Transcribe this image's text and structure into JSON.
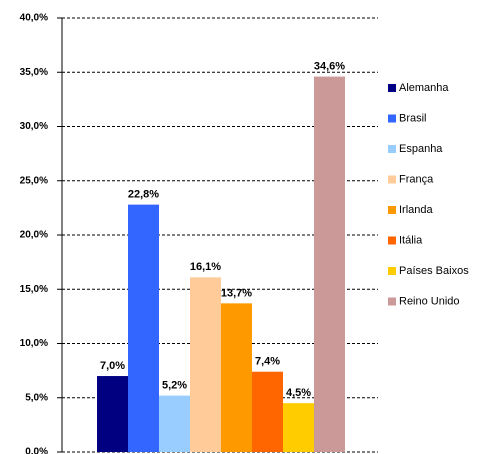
{
  "chart_data": {
    "type": "bar",
    "series": [
      {
        "name": "Alemanha",
        "color": "#000080",
        "values": [
          7.0
        ],
        "value_labels": [
          "7,0%"
        ]
      },
      {
        "name": "Brasil",
        "color": "#3366ff",
        "values": [
          22.8
        ],
        "value_labels": [
          "22,8%"
        ]
      },
      {
        "name": "Espanha",
        "color": "#99ccff",
        "values": [
          5.2
        ],
        "value_labels": [
          "5,2%"
        ]
      },
      {
        "name": "França",
        "color": "#ffcc99",
        "values": [
          16.1
        ],
        "value_labels": [
          "16,1%"
        ]
      },
      {
        "name": "Irlanda",
        "color": "#ff9900",
        "values": [
          13.7
        ],
        "value_labels": [
          "13,7%"
        ]
      },
      {
        "name": "Itália",
        "color": "#ff6600",
        "values": [
          7.4
        ],
        "value_labels": [
          "7,4%"
        ]
      },
      {
        "name": "Países Baixos",
        "color": "#ffcc00",
        "values": [
          4.5
        ],
        "value_labels": [
          "4,5%"
        ]
      },
      {
        "name": "Reino Unido",
        "color": "#cc9999",
        "values": [
          34.6
        ],
        "value_labels": [
          "34,6%"
        ]
      }
    ],
    "ylim": [
      0,
      40
    ],
    "yticks": [
      {
        "value": 0,
        "label": "0,0%"
      },
      {
        "value": 5,
        "label": "5,0%"
      },
      {
        "value": 10,
        "label": "10,0%"
      },
      {
        "value": 15,
        "label": "15,0%"
      },
      {
        "value": 20,
        "label": "20,0%"
      },
      {
        "value": 25,
        "label": "25,0%"
      },
      {
        "value": 30,
        "label": "30,0%"
      },
      {
        "value": 35,
        "label": "35,0%"
      },
      {
        "value": 40,
        "label": "40,0%"
      }
    ],
    "grid": true,
    "legend": "right"
  }
}
